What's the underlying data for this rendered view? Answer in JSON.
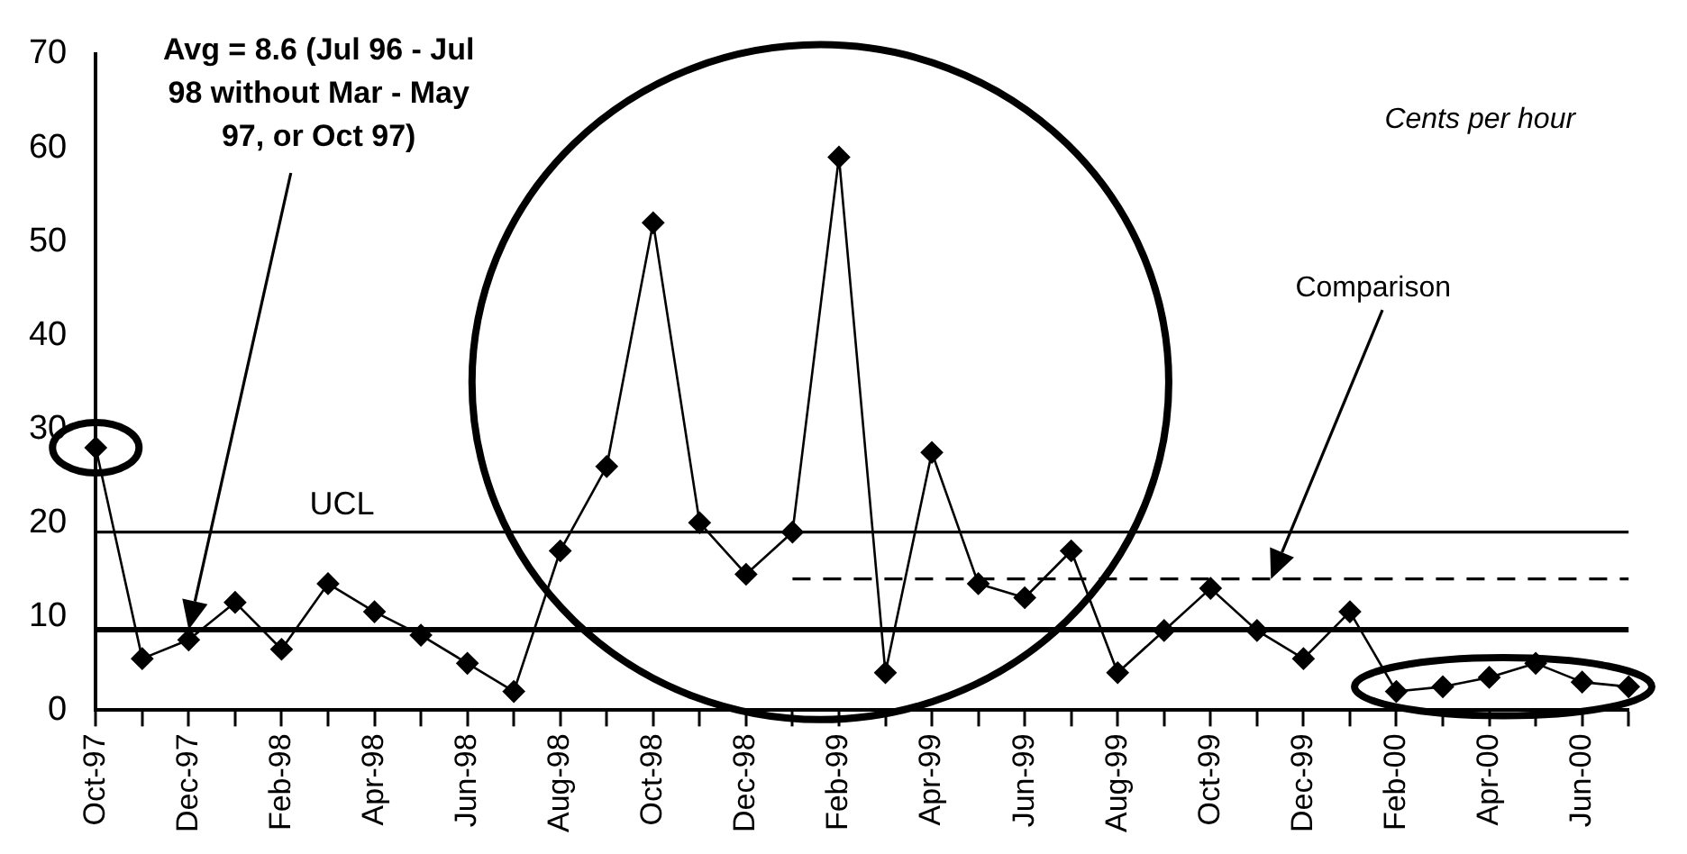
{
  "chart_data": {
    "type": "line",
    "categories": [
      "Oct-97",
      null,
      "Dec-97",
      null,
      "Feb-98",
      null,
      "Apr-98",
      null,
      "Jun-98",
      null,
      "Aug-98",
      null,
      "Oct-98",
      null,
      "Dec-98",
      null,
      "Feb-99",
      null,
      "Apr-99",
      null,
      "Jun-99",
      null,
      "Aug-99",
      null,
      "Oct-99",
      null,
      "Dec-99",
      null,
      "Feb-00",
      null,
      "Apr-00",
      null,
      "Jun-00",
      null
    ],
    "series": [
      {
        "color": "#000000",
        "values": [
          28,
          5.5,
          7.5,
          11.5,
          6.5,
          13.5,
          10.5,
          8,
          5,
          2,
          17,
          26,
          52,
          20,
          14.5,
          19,
          59,
          4,
          27.5,
          13.5,
          12,
          17,
          4,
          8.5,
          13,
          8.5,
          5.5,
          10.5,
          2,
          2.5,
          3.5,
          5,
          3,
          2.5
        ]
      },
      {
        "color": "#000000",
        "line_style": "dashed",
        "marker": "none",
        "values": [
          null,
          null,
          null,
          null,
          null,
          null,
          null,
          null,
          null,
          null,
          null,
          null,
          null,
          null,
          null,
          14,
          14,
          14,
          14,
          14,
          14,
          14,
          14,
          14,
          14,
          14,
          14,
          14,
          14,
          14,
          14,
          14,
          14,
          14
        ]
      }
    ],
    "ylim": [
      0,
      70
    ],
    "yticks": [
      0,
      10,
      20,
      30,
      40,
      50,
      60,
      70
    ],
    "grid": false,
    "legend": false,
    "marker": "diamond",
    "line_style": "solid",
    "ref_lines": [
      {
        "axis": "y",
        "value": 19,
        "label": "UCL"
      },
      {
        "axis": "y",
        "value": 8.6
      }
    ],
    "annotations": [
      "Avg = 8.6 (Jul 96 - Jul 98 without Mar - May 97, or Oct 97)",
      "Cents per hour",
      "Comparison"
    ]
  }
}
